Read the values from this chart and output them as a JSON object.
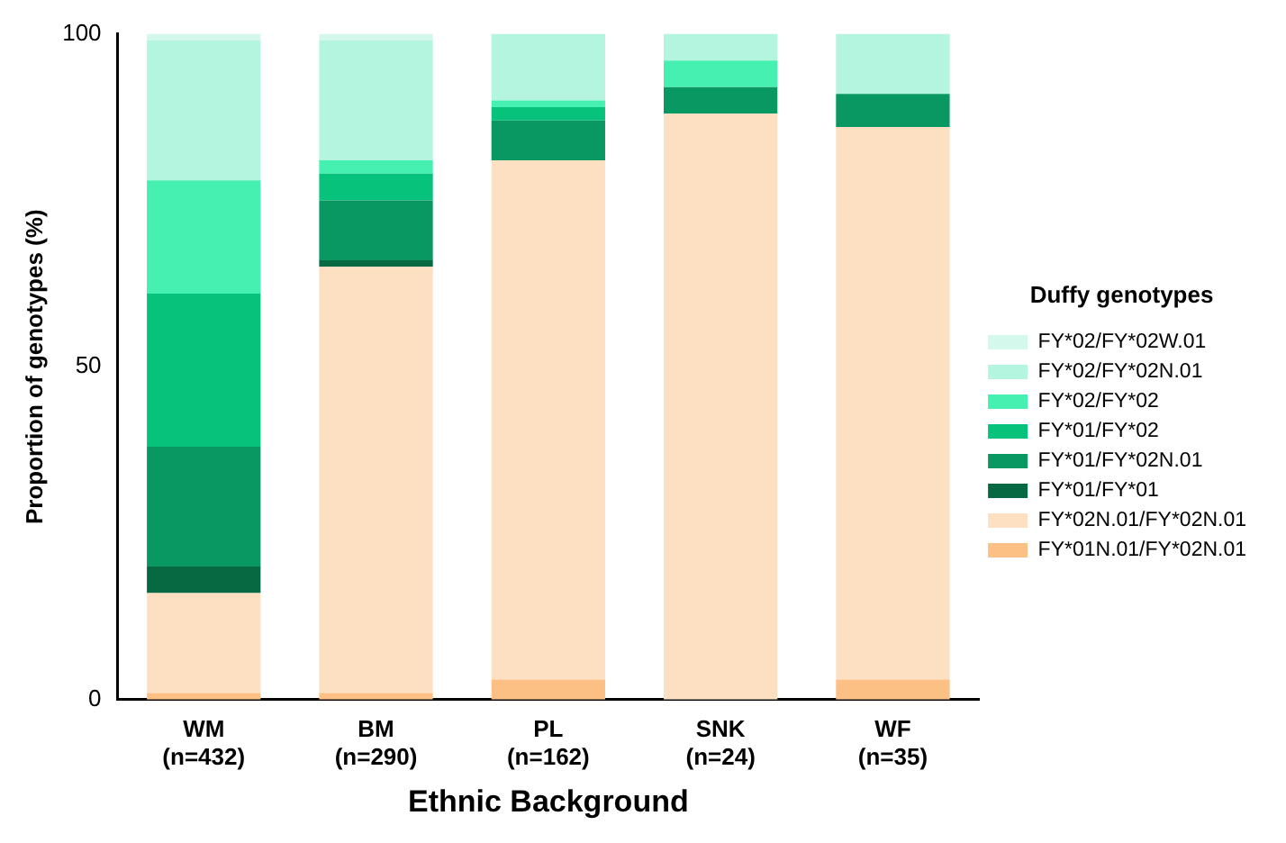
{
  "chart_data": {
    "type": "bar",
    "stacked": true,
    "xlabel": "Ethnic Background",
    "ylabel": "Proportion of genotypes (%)",
    "legend_title": "Duffy genotypes",
    "legend": "right",
    "categories": [
      "WM\n(n=432)",
      "BM\n(n=290)",
      "PL\n(n=162)",
      "SNK\n(n=24)",
      "WF\n(n=35)"
    ],
    "ylim": [
      0,
      100
    ],
    "yticks": [
      0,
      50,
      100
    ],
    "grid": false,
    "series": [
      {
        "name": "FY*01N.01/FY*02N.01",
        "color": "#fdc084",
        "values": [
          1,
          1,
          3,
          0,
          3
        ]
      },
      {
        "name": "FY*02N.01/FY*02N.01",
        "color": "#fde0c2",
        "values": [
          15,
          64,
          78,
          88,
          83
        ]
      },
      {
        "name": "FY*01/FY*01",
        "color": "#066942",
        "values": [
          4,
          1,
          0,
          0,
          0
        ]
      },
      {
        "name": "FY*01/FY*02N.01",
        "color": "#0a9862",
        "values": [
          18,
          9,
          6,
          4,
          5
        ]
      },
      {
        "name": "FY*01/FY*02",
        "color": "#07c27a",
        "values": [
          23,
          4,
          2,
          0,
          0
        ]
      },
      {
        "name": "FY*02/FY*02",
        "color": "#45f0b0",
        "values": [
          17,
          2,
          1,
          4,
          0
        ]
      },
      {
        "name": "FY*02/FY*02N.01",
        "color": "#b3f5df",
        "values": [
          21,
          18,
          10,
          4,
          9
        ]
      },
      {
        "name": "FY*02/FY*02W.01",
        "color": "#d5f8ec",
        "values": [
          1,
          1,
          0,
          0,
          0
        ]
      }
    ]
  }
}
